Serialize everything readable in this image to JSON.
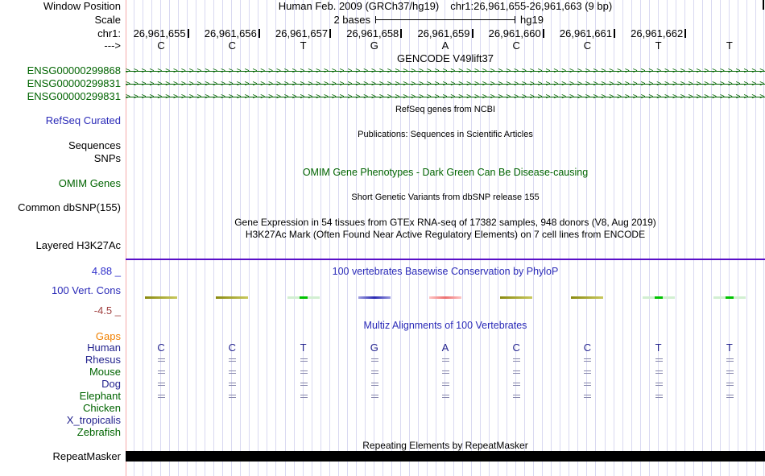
{
  "colors": {
    "dark_green": "#006400",
    "blue_link": "#2a2ab8",
    "navy": "#23238e",
    "green": "#006400",
    "orange": "#f08000",
    "cons_max_blue": "#3333cc",
    "cons_min_red": "#a04040",
    "purple_line": "#5a0fc8",
    "grid": "#d9d9f1",
    "track_border": "#f5a9a9",
    "repeat_bar": "#000000",
    "eq_mark": "#8787ad"
  },
  "mark_styles": {
    "olive": "linear-gradient(90deg,#8a8a10,#c9c95e)",
    "green": "linear-gradient(90deg,#d2efd2 0%,#d2efd2 38%,#00c300 38%,#00c300 62%,#d2efd2 62%,#d2efd2 100%)",
    "blue": "linear-gradient(90deg,#a0a0e0,#2828b2,#9a9ae0)",
    "red": "linear-gradient(90deg,#ffc6c6,#ec6f6f,#ffc6c6)"
  },
  "header": {
    "assembly_title": "Human Feb. 2009 (GRCh37/hg19)",
    "position": "chr1:26,961,655-26,961,663 (9 bp)"
  },
  "scale": {
    "label": "2 bases",
    "assembly": "hg19"
  },
  "left_labels": {
    "window_position": "Window Position",
    "scale": "Scale",
    "chromosome": "chr1:",
    "strand": "--->",
    "refseq_curated": "RefSeq Curated",
    "sequences": "Sequences",
    "snps": "SNPs",
    "omim_genes": "OMIM Genes",
    "common_dbsnp": "Common dbSNP(155)",
    "layered_h3k27ac": "Layered H3K27Ac",
    "cons_max": "4.88 _",
    "cons_name": "100 Vert. Cons",
    "cons_min": "-4.5 _",
    "gaps": "Gaps",
    "repeatmasker": "RepeatMasker"
  },
  "ruler": {
    "coordinates": [
      "26,961,655",
      "26,961,656",
      "26,961,657",
      "26,961,658",
      "26,961,659",
      "26,961,660",
      "26,961,661",
      "26,961,662"
    ],
    "bases": [
      "C",
      "C",
      "T",
      "G",
      "A",
      "C",
      "C",
      "T",
      "T"
    ]
  },
  "titles": {
    "gencode": "GENCODE V49lift37",
    "refseq": "RefSeq genes from NCBI",
    "publications": "Publications: Sequences in Scientific Articles",
    "omim": "OMIM Gene Phenotypes - Dark Green Can Be Disease-causing",
    "dbsnp": "Short Genetic Variants from dbSNP release 155",
    "gtex": "Gene Expression in 54 tissues from GTEx RNA-seq of 17382 samples, 948 donors (V8, Aug 2019)",
    "h3k27ac": "H3K27Ac Mark (Often Found Near Active Regulatory Elements) on 7 cell lines from ENCODE",
    "conservation": "100 vertebrates Basewise Conservation by PhyloP",
    "multiz": "Multiz Alignments of 100 Vertebrates",
    "repeat": "Repeating Elements by RepeatMasker"
  },
  "gencode": {
    "genes": [
      "ENSG00000299868",
      "ENSG00000299831",
      "ENSG00000299831"
    ]
  },
  "conservation": {
    "marks": [
      {
        "base": "C",
        "kind": "olive"
      },
      {
        "base": "C",
        "kind": "olive"
      },
      {
        "base": "T",
        "kind": "green"
      },
      {
        "base": "G",
        "kind": "blue"
      },
      {
        "base": "A",
        "kind": "red"
      },
      {
        "base": "C",
        "kind": "olive"
      },
      {
        "base": "C",
        "kind": "olive"
      },
      {
        "base": "T",
        "kind": "green"
      },
      {
        "base": "T",
        "kind": "green"
      }
    ]
  },
  "multiz": {
    "species": [
      {
        "name": "Human",
        "color": "navy",
        "cells": [
          "C",
          "C",
          "T",
          "G",
          "A",
          "C",
          "C",
          "T",
          "T"
        ]
      },
      {
        "name": "Rhesus",
        "color": "navy",
        "cells": [
          "=",
          "=",
          "=",
          "=",
          "=",
          "=",
          "=",
          "=",
          "="
        ]
      },
      {
        "name": "Mouse",
        "color": "green",
        "cells": [
          "=",
          "=",
          "=",
          "=",
          "=",
          "=",
          "=",
          "=",
          "="
        ]
      },
      {
        "name": "Dog",
        "color": "navy",
        "cells": [
          "=",
          "=",
          "=",
          "=",
          "=",
          "=",
          "=",
          "=",
          "="
        ]
      },
      {
        "name": "Elephant",
        "color": "green",
        "cells": [
          "=",
          "=",
          "=",
          "=",
          "=",
          "=",
          "=",
          "=",
          "="
        ]
      },
      {
        "name": "Chicken",
        "color": "green",
        "cells": [
          "",
          "",
          "",
          "",
          "",
          "",
          "",
          "",
          ""
        ]
      },
      {
        "name": "X_tropicalis",
        "color": "navy",
        "cells": [
          "",
          "",
          "",
          "",
          "",
          "",
          "",
          "",
          ""
        ]
      },
      {
        "name": "Zebrafish",
        "color": "green",
        "cells": [
          "",
          "",
          "",
          "",
          "",
          "",
          "",
          "",
          ""
        ]
      }
    ]
  }
}
